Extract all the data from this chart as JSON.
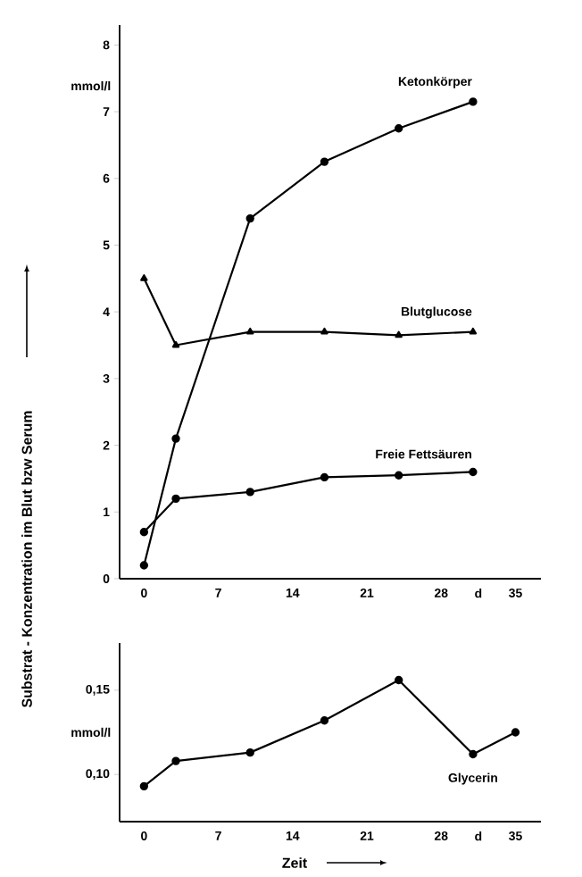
{
  "chart_data": [
    {
      "type": "line",
      "ylabel": "Substrat - Konzentration im Blut bzw Serum",
      "annotations": [
        "mmol/l"
      ],
      "xlim": [
        -2.3,
        37.4
      ],
      "ylim": [
        0,
        8.3
      ],
      "xticks": [
        0,
        7,
        14,
        21,
        28,
        {
          "value": 31.5,
          "label": "d"
        },
        35
      ],
      "yticks": [
        0,
        1,
        2,
        3,
        4,
        5,
        6,
        7,
        8
      ],
      "x": [
        0,
        3,
        10,
        17,
        24,
        31
      ],
      "grid": false,
      "legend": false,
      "series": [
        {
          "name": "Ketonkörper",
          "color": "#000000",
          "marker": "circle",
          "values": [
            0.2,
            2.1,
            5.4,
            6.25,
            6.75,
            7.15
          ]
        },
        {
          "name": "Blutglucose",
          "color": "#000000",
          "marker": "triangle",
          "values": [
            4.5,
            3.5,
            3.7,
            3.7,
            3.65,
            3.7
          ]
        },
        {
          "name": "Freie Fettsäuren",
          "color": "#000000",
          "marker": "circle",
          "values": [
            0.7,
            1.2,
            1.3,
            1.52,
            1.55,
            1.6
          ]
        }
      ]
    },
    {
      "type": "line",
      "xlabel": "Zeit",
      "annotations": [
        "mmol/l"
      ],
      "xlim": [
        -2.3,
        37.4
      ],
      "ylim": [
        0.072,
        0.178
      ],
      "xticks": [
        0,
        7,
        14,
        21,
        28,
        {
          "value": 31.5,
          "label": "d"
        },
        35
      ],
      "yticks": [
        {
          "value": 0.1,
          "label": "0,10"
        },
        {
          "value": 0.15,
          "label": "0,15"
        }
      ],
      "x": [
        0,
        3,
        10,
        17,
        24,
        31,
        35
      ],
      "grid": false,
      "legend": false,
      "series": [
        {
          "name": "Glycerin",
          "color": "#000000",
          "marker": "circle",
          "values": [
            0.093,
            0.108,
            0.113,
            0.132,
            0.156,
            0.112,
            0.125
          ]
        }
      ]
    }
  ]
}
